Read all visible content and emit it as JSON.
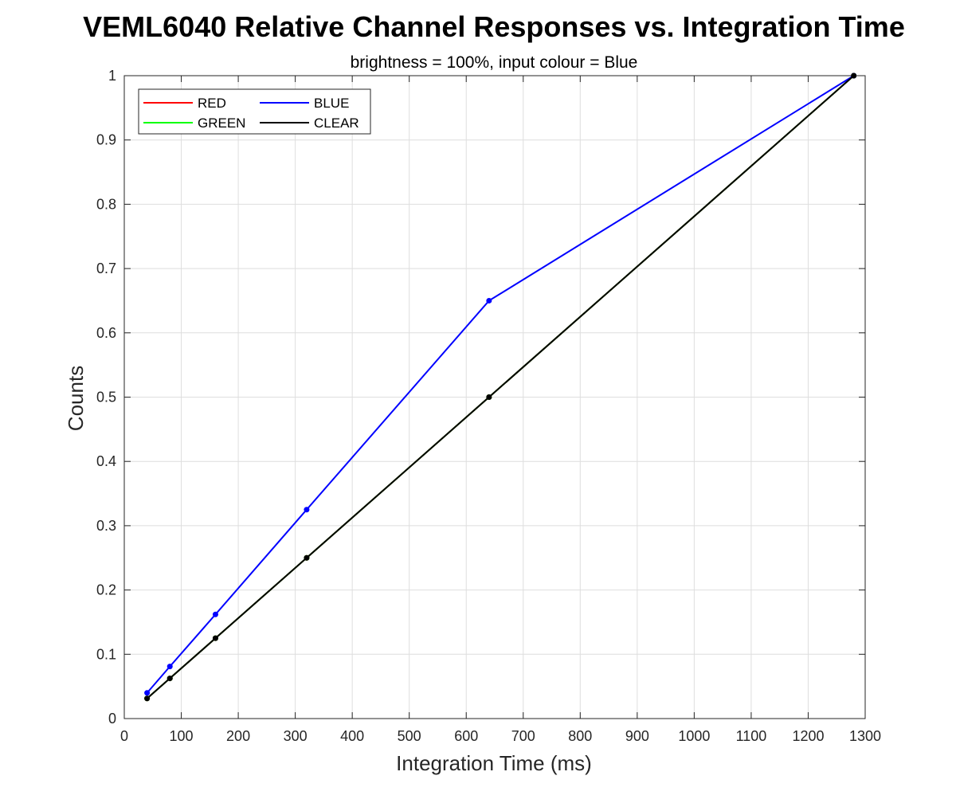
{
  "chart_data": {
    "type": "line",
    "title": "VEML6040 Relative Channel Responses vs. Integration Time",
    "subtitle": "brightness = 100%, input colour = Blue",
    "xlabel": "Integration Time (ms)",
    "ylabel": "Counts",
    "xlim": [
      0,
      1300
    ],
    "ylim": [
      0,
      1
    ],
    "xticks": [
      0,
      100,
      200,
      300,
      400,
      500,
      600,
      700,
      800,
      900,
      1000,
      1100,
      1200,
      1300
    ],
    "yticks": [
      0,
      0.1,
      0.2,
      0.3,
      0.4,
      0.5,
      0.6,
      0.7,
      0.8,
      0.9,
      1
    ],
    "xtick_labels": [
      "0",
      "100",
      "200",
      "300",
      "400",
      "500",
      "600",
      "700",
      "800",
      "900",
      "1000",
      "1100",
      "1200",
      "1300"
    ],
    "ytick_labels": [
      "0",
      "0.1",
      "0.2",
      "0.3",
      "0.4",
      "0.5",
      "0.6",
      "0.7",
      "0.8",
      "0.9",
      "1"
    ],
    "grid": true,
    "legend_position": "top-left",
    "x": [
      40,
      80,
      160,
      320,
      640,
      1280
    ],
    "series": [
      {
        "name": "RED",
        "color": "#ff0000",
        "values": [
          0.03125,
          0.0625,
          0.125,
          0.25,
          0.5,
          1
        ]
      },
      {
        "name": "GREEN",
        "color": "#00ff00",
        "values": [
          0.03125,
          0.0625,
          0.125,
          0.25,
          0.5,
          1
        ]
      },
      {
        "name": "BLUE",
        "color": "#0000ff",
        "values": [
          0.04,
          0.081,
          0.162,
          0.325,
          0.65,
          1
        ]
      },
      {
        "name": "CLEAR",
        "color": "#000000",
        "values": [
          0.03125,
          0.0625,
          0.125,
          0.25,
          0.5,
          1
        ]
      }
    ]
  }
}
